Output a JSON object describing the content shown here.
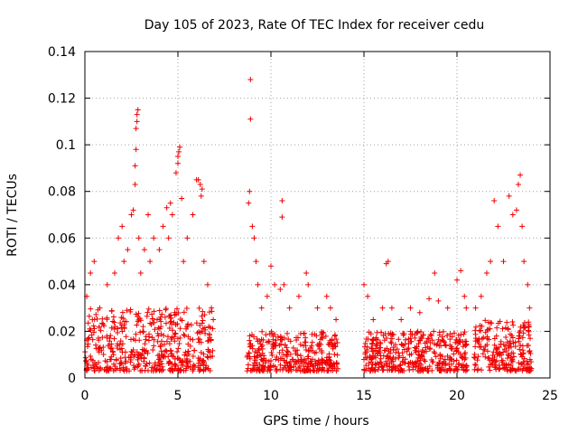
{
  "chart_data": {
    "type": "scatter",
    "title": "Day 105 of 2023, Rate Of TEC Index for receiver cedu",
    "xlabel": "GPS time / hours",
    "ylabel": "ROTI / TECUs",
    "xlim": [
      0,
      25
    ],
    "ylim": [
      0,
      0.14
    ],
    "xticks": [
      0,
      5,
      10,
      15,
      20,
      25
    ],
    "yticks": [
      0,
      0.02,
      0.04,
      0.06,
      0.08,
      0.1,
      0.12,
      0.14
    ],
    "xtick_labels": [
      "0",
      "5",
      "10",
      "15",
      "20",
      "25"
    ],
    "ytick_labels": [
      "0",
      "0.02",
      "0.04",
      "0.06",
      "0.08",
      "0.1",
      "0.12",
      "0.14"
    ],
    "grid": true,
    "marker": "plus",
    "color": "#f00000",
    "series": [
      {
        "name": "ROTI",
        "points": [
          [
            0.1,
            0.035
          ],
          [
            0.3,
            0.045
          ],
          [
            0.5,
            0.05
          ],
          [
            0.8,
            0.03
          ],
          [
            1.2,
            0.04
          ],
          [
            1.6,
            0.045
          ],
          [
            1.8,
            0.06
          ],
          [
            2.0,
            0.065
          ],
          [
            2.1,
            0.05
          ],
          [
            2.3,
            0.055
          ],
          [
            2.5,
            0.07
          ],
          [
            2.6,
            0.072
          ],
          [
            2.7,
            0.083
          ],
          [
            2.7,
            0.091
          ],
          [
            2.75,
            0.098
          ],
          [
            2.75,
            0.107
          ],
          [
            2.8,
            0.11
          ],
          [
            2.8,
            0.113
          ],
          [
            2.85,
            0.115
          ],
          [
            2.9,
            0.06
          ],
          [
            3.0,
            0.045
          ],
          [
            3.2,
            0.055
          ],
          [
            3.4,
            0.07
          ],
          [
            3.5,
            0.05
          ],
          [
            3.7,
            0.06
          ],
          [
            4.0,
            0.055
          ],
          [
            4.2,
            0.065
          ],
          [
            4.4,
            0.073
          ],
          [
            4.5,
            0.06
          ],
          [
            4.6,
            0.075
          ],
          [
            4.7,
            0.07
          ],
          [
            4.9,
            0.088
          ],
          [
            5.0,
            0.092
          ],
          [
            5.0,
            0.095
          ],
          [
            5.05,
            0.097
          ],
          [
            5.1,
            0.099
          ],
          [
            5.2,
            0.077
          ],
          [
            5.3,
            0.05
          ],
          [
            5.5,
            0.06
          ],
          [
            5.8,
            0.07
          ],
          [
            6.0,
            0.085
          ],
          [
            6.1,
            0.085
          ],
          [
            6.2,
            0.083
          ],
          [
            6.3,
            0.081
          ],
          [
            6.25,
            0.078
          ],
          [
            6.4,
            0.05
          ],
          [
            6.6,
            0.04
          ],
          [
            6.8,
            0.03
          ],
          [
            6.9,
            0.025
          ],
          [
            8.8,
            0.075
          ],
          [
            8.85,
            0.08
          ],
          [
            8.9,
            0.111
          ],
          [
            8.9,
            0.128
          ],
          [
            9.0,
            0.065
          ],
          [
            9.1,
            0.06
          ],
          [
            9.2,
            0.05
          ],
          [
            9.3,
            0.04
          ],
          [
            9.5,
            0.03
          ],
          [
            9.8,
            0.035
          ],
          [
            10.0,
            0.048
          ],
          [
            10.2,
            0.04
          ],
          [
            10.5,
            0.038
          ],
          [
            10.6,
            0.069
          ],
          [
            10.6,
            0.076
          ],
          [
            10.7,
            0.04
          ],
          [
            11.0,
            0.03
          ],
          [
            11.5,
            0.035
          ],
          [
            11.9,
            0.045
          ],
          [
            12.0,
            0.04
          ],
          [
            12.5,
            0.03
          ],
          [
            13.0,
            0.035
          ],
          [
            13.2,
            0.03
          ],
          [
            13.5,
            0.025
          ],
          [
            15.0,
            0.04
          ],
          [
            15.2,
            0.035
          ],
          [
            15.5,
            0.025
          ],
          [
            16.0,
            0.03
          ],
          [
            16.2,
            0.049
          ],
          [
            16.3,
            0.05
          ],
          [
            16.5,
            0.03
          ],
          [
            17.0,
            0.025
          ],
          [
            17.5,
            0.03
          ],
          [
            18.0,
            0.028
          ],
          [
            18.5,
            0.034
          ],
          [
            18.8,
            0.045
          ],
          [
            19.0,
            0.033
          ],
          [
            19.5,
            0.03
          ],
          [
            20.0,
            0.042
          ],
          [
            20.2,
            0.046
          ],
          [
            20.4,
            0.035
          ],
          [
            20.5,
            0.03
          ],
          [
            21.0,
            0.03
          ],
          [
            21.3,
            0.035
          ],
          [
            21.6,
            0.045
          ],
          [
            21.8,
            0.05
          ],
          [
            22.0,
            0.076
          ],
          [
            22.2,
            0.065
          ],
          [
            22.5,
            0.05
          ],
          [
            22.8,
            0.078
          ],
          [
            23.0,
            0.07
          ],
          [
            23.2,
            0.072
          ],
          [
            23.3,
            0.083
          ],
          [
            23.4,
            0.087
          ],
          [
            23.5,
            0.065
          ],
          [
            23.6,
            0.05
          ],
          [
            23.8,
            0.04
          ],
          [
            23.9,
            0.03
          ]
        ]
      }
    ],
    "dense_band": {
      "note": "continuous scatter band of points at low ROTI values",
      "segments": [
        {
          "x_start": 0.0,
          "x_end": 6.9,
          "y_low": 0.003,
          "y_high": 0.03
        },
        {
          "x_start": 8.7,
          "x_end": 13.6,
          "y_low": 0.003,
          "y_high": 0.02
        },
        {
          "x_start": 15.0,
          "x_end": 20.6,
          "y_low": 0.003,
          "y_high": 0.02
        },
        {
          "x_start": 20.9,
          "x_end": 24.0,
          "y_low": 0.003,
          "y_high": 0.025
        }
      ]
    }
  }
}
